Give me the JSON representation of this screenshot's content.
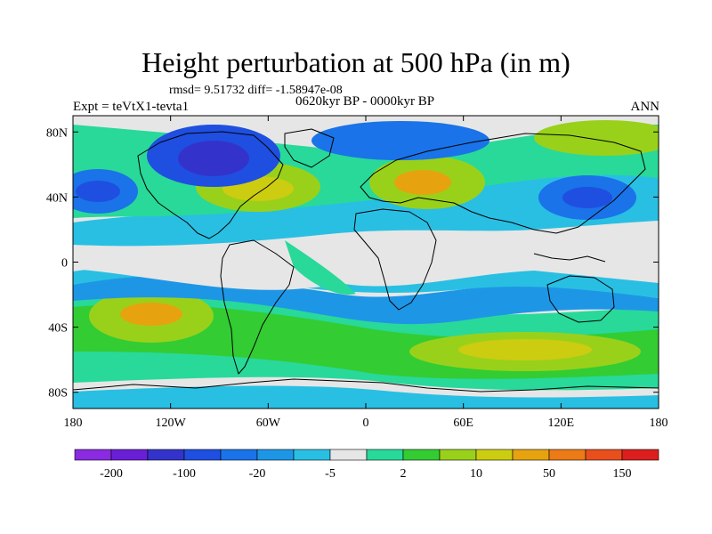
{
  "title": "Height perturbation at 500 hPa (in m)",
  "stats": {
    "rmsd_label": "rmsd=",
    "rmsd": "9.51732",
    "diff_label": "diff=",
    "diff": "-1.58947e-08"
  },
  "period": "0620kyr BP - 0000kyr BP",
  "experiment": "Expt = teVtX1-tevta1",
  "season": "ANN",
  "map": {
    "lat_ticks": [
      "80N",
      "40N",
      "0",
      "40S",
      "80S"
    ],
    "lat_values": [
      80,
      40,
      0,
      -40,
      -80
    ],
    "lon_ticks": [
      "180",
      "120W",
      "60W",
      "0",
      "60E",
      "120E",
      "180"
    ],
    "lon_values": [
      -180,
      -120,
      -60,
      0,
      60,
      120,
      180
    ]
  },
  "colorbar": {
    "colors": [
      "#8a2be2",
      "#6a1fd6",
      "#3333cc",
      "#1f4fe0",
      "#1a73e8",
      "#1e96e6",
      "#29bfe3",
      "#e6e6e6",
      "#28d99a",
      "#33cc33",
      "#99d11a",
      "#cccc11",
      "#e6a30f",
      "#ec7a16",
      "#e84f1c",
      "#dd1e1e"
    ],
    "labels": [
      "-200",
      "-100",
      "-20",
      "-5",
      "2",
      "10",
      "50",
      "150"
    ]
  },
  "palette": {
    "neutral": "#e6e6e6",
    "pos_weak": "#28d99a",
    "pos_mid": "#33cc33",
    "pos_strong": "#99d11a",
    "pos_max": "#cccc11",
    "pos_peak": "#e6a30f",
    "neg_weak": "#29bfe3",
    "neg_mid": "#1e96e6",
    "neg_strong": "#1a73e8",
    "neg_max": "#1f4fe0",
    "neg_peak": "#3333cc",
    "coast": "#000000"
  }
}
